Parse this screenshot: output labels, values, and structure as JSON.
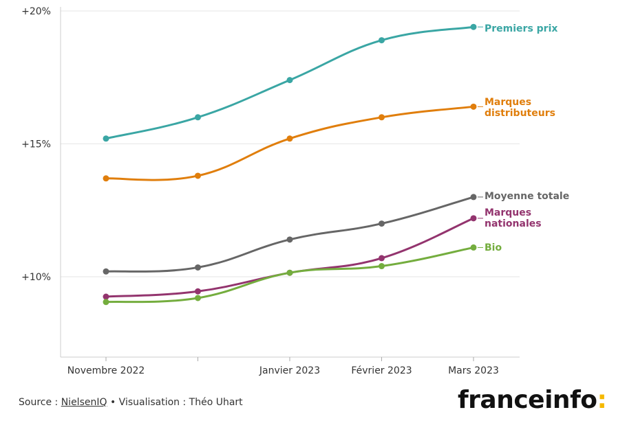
{
  "chart_data": {
    "type": "line",
    "title": "",
    "xlabel": "",
    "ylabel": "",
    "x_positions": [
      0,
      1,
      2,
      3,
      4
    ],
    "categories": [
      "Novembre 2022",
      "",
      "Janvier 2023",
      "Février 2023",
      "Mars 2023"
    ],
    "y_ticks": [
      {
        "value": 20,
        "label": "+20%"
      },
      {
        "value": 15,
        "label": "+15%"
      },
      {
        "value": 10,
        "label": "+10%"
      }
    ],
    "ylim": [
      7,
      20
    ],
    "grid": true,
    "series": [
      {
        "name": "Premiers prix",
        "label_lines": [
          "Premiers prix"
        ],
        "color": "#3aa6a4",
        "values": [
          15.2,
          16.0,
          17.4,
          18.9,
          19.4
        ]
      },
      {
        "name": "Marques distributeurs",
        "label_lines": [
          "Marques",
          "distributeurs"
        ],
        "color": "#e07e0c",
        "values": [
          13.7,
          13.8,
          15.2,
          16.0,
          16.4
        ]
      },
      {
        "name": "Moyenne totale",
        "label_lines": [
          "Moyenne totale"
        ],
        "color": "#666666",
        "values": [
          10.2,
          10.35,
          11.4,
          12.0,
          13.0
        ]
      },
      {
        "name": "Marques nationales",
        "label_lines": [
          "Marques",
          "nationales"
        ],
        "color": "#93346e",
        "values": [
          9.25,
          9.45,
          10.15,
          10.7,
          12.2
        ]
      },
      {
        "name": "Bio",
        "label_lines": [
          "Bio"
        ],
        "color": "#74ad3e",
        "values": [
          9.05,
          9.2,
          10.15,
          10.4,
          11.1
        ]
      }
    ]
  },
  "footer": {
    "source_prefix": "Source : ",
    "source_name": "NielsenIQ",
    "separator": " • ",
    "visualisation": "Visualisation : Théo Uhart"
  },
  "brand": {
    "name": "franceinfo",
    "colon": ":"
  }
}
